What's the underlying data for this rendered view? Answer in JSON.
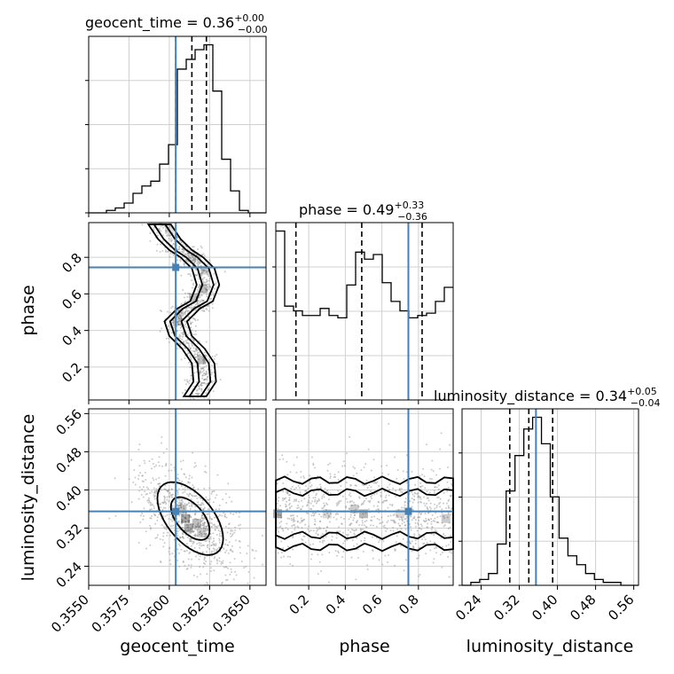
{
  "colors": {
    "truth": "#4682b4",
    "hist": "#000000",
    "grid": "#d0d0d0",
    "points": "#8c8c8c"
  },
  "titles": {
    "geocent_time": {
      "name": "geocent_time",
      "median": "0.36",
      "plus": "+0.00",
      "minus": "−0.00"
    },
    "phase": {
      "name": "phase",
      "median": "0.49",
      "plus": "+0.33",
      "minus": "−0.36"
    },
    "luminosity_distance": {
      "name": "luminosity_distance",
      "median": "0.34",
      "plus": "+0.05",
      "minus": "−0.04"
    }
  },
  "labels": {
    "x": [
      "geocent_time",
      "phase",
      "luminosity_distance"
    ],
    "y": [
      "phase",
      "luminosity_distance"
    ]
  },
  "chart_data": {
    "type": "corner",
    "parameters": [
      "geocent_time",
      "phase",
      "luminosity_distance"
    ],
    "ranges": {
      "geocent_time": [
        0.355,
        0.366
      ],
      "phase": [
        0.02,
        0.99
      ],
      "luminosity_distance": [
        0.2,
        0.57
      ]
    },
    "truths": {
      "geocent_time": 0.3604,
      "phase": 0.745,
      "luminosity_distance": 0.355
    },
    "quantiles": {
      "geocent_time": [
        0.3604,
        0.3614,
        0.3623
      ],
      "phase": [
        0.13,
        0.49,
        0.82
      ],
      "luminosity_distance": [
        0.3,
        0.34,
        0.39
      ]
    },
    "ticks": {
      "geocent_time": {
        "values": [
          0.355,
          0.3575,
          0.36,
          0.3625,
          0.365
        ],
        "labels": [
          "0.3550",
          "0.3575",
          "0.3600",
          "0.3625",
          "0.3650"
        ]
      },
      "phase": {
        "values": [
          0.2,
          0.4,
          0.6,
          0.8
        ],
        "labels": [
          "0.2",
          "0.4",
          "0.6",
          "0.8"
        ]
      },
      "luminosity_distance": {
        "values": [
          0.24,
          0.32,
          0.4,
          0.48,
          0.56
        ],
        "labels": [
          "0.24",
          "0.32",
          "0.40",
          "0.48",
          "0.56"
        ]
      }
    },
    "histograms": {
      "geocent_time": {
        "edges": [
          0.355,
          0.35555,
          0.3561,
          0.35665,
          0.3572,
          0.35775,
          0.3583,
          0.35885,
          0.3594,
          0.35995,
          0.3605,
          0.36105,
          0.3616,
          0.36215,
          0.3627,
          0.36325,
          0.3638,
          0.36435,
          0.3649,
          0.36545,
          0.366
        ],
        "counts": [
          0,
          0,
          1,
          2,
          4,
          8,
          11,
          13,
          20,
          28,
          59,
          63,
          67,
          69,
          50,
          22,
          9,
          1,
          0,
          0
        ]
      },
      "phase": {
        "edges": [
          0.02,
          0.0685,
          0.117,
          0.1655,
          0.214,
          0.2625,
          0.311,
          0.3595,
          0.408,
          0.4565,
          0.505,
          0.5535,
          0.602,
          0.6505,
          0.699,
          0.7475,
          0.796,
          0.8445,
          0.893,
          0.9415,
          0.99
        ],
        "counts": [
          72,
          40,
          38,
          36,
          36,
          39,
          36,
          35,
          49,
          63,
          60,
          62,
          50,
          42,
          38,
          35,
          36,
          37,
          42,
          48
        ]
      },
      "luminosity_distance": {
        "edges": [
          0.2,
          0.2185,
          0.237,
          0.2555,
          0.274,
          0.2925,
          0.311,
          0.3295,
          0.348,
          0.3665,
          0.385,
          0.4035,
          0.422,
          0.4405,
          0.459,
          0.4775,
          0.496,
          0.5145,
          0.533,
          0.5515,
          0.57
        ],
        "counts": [
          0,
          1,
          2,
          4,
          14,
          32,
          44,
          53,
          57,
          48,
          30,
          16,
          10,
          7,
          4,
          2,
          1,
          1,
          0,
          0
        ]
      }
    },
    "joint_samples": {
      "phase_vs_geocent_time": {
        "path_x": [
          0.3594,
          0.36,
          0.3607,
          0.3614,
          0.3621,
          0.3624,
          0.362,
          0.3612,
          0.3604,
          0.3607,
          0.3615,
          0.3621,
          0.3622,
          0.3616
        ],
        "path_y": [
          0.98,
          0.9,
          0.84,
          0.8,
          0.74,
          0.65,
          0.56,
          0.52,
          0.45,
          0.37,
          0.3,
          0.22,
          0.12,
          0.04
        ],
        "dense": [
          {
            "x": 0.3615,
            "y": 0.58,
            "w": 0.25
          },
          {
            "x": 0.3621,
            "y": 0.63,
            "w": 0.25
          },
          {
            "x": 0.362,
            "y": 0.24,
            "w": 0.25
          },
          {
            "x": 0.3606,
            "y": 0.5,
            "w": 0.2
          },
          {
            "x": 0.3605,
            "y": 0.45,
            "w": 0.2
          },
          {
            "x": 0.3622,
            "y": 0.73,
            "w": 0.18
          },
          {
            "x": 0.3614,
            "y": 0.8,
            "w": 0.15
          },
          {
            "x": 0.36,
            "y": 0.95,
            "w": 0.12
          }
        ]
      },
      "luminosity_distance_vs_geocent_time": {
        "center": [
          0.3613,
          0.34
        ],
        "sd": [
          0.0012,
          0.045
        ],
        "corr": -0.55,
        "dense": [
          {
            "x": 0.361,
            "y": 0.34,
            "w": 0.35
          },
          {
            "x": 0.3612,
            "y": 0.32,
            "w": 0.3
          },
          {
            "x": 0.3617,
            "y": 0.33,
            "w": 0.25
          },
          {
            "x": 0.3608,
            "y": 0.36,
            "w": 0.22
          },
          {
            "x": 0.362,
            "y": 0.31,
            "w": 0.2
          }
        ]
      },
      "luminosity_distance_vs_phase": {
        "center_y": 0.35,
        "sd_y": 0.04,
        "dense": [
          {
            "x": 0.03,
            "y": 0.35,
            "w": 0.35
          },
          {
            "x": 0.5,
            "y": 0.35,
            "w": 0.28
          },
          {
            "x": 0.45,
            "y": 0.36,
            "w": 0.2
          },
          {
            "x": 0.95,
            "y": 0.34,
            "w": 0.2
          },
          {
            "x": 0.3,
            "y": 0.35,
            "w": 0.15
          },
          {
            "x": 0.7,
            "y": 0.35,
            "w": 0.15
          }
        ]
      }
    }
  }
}
